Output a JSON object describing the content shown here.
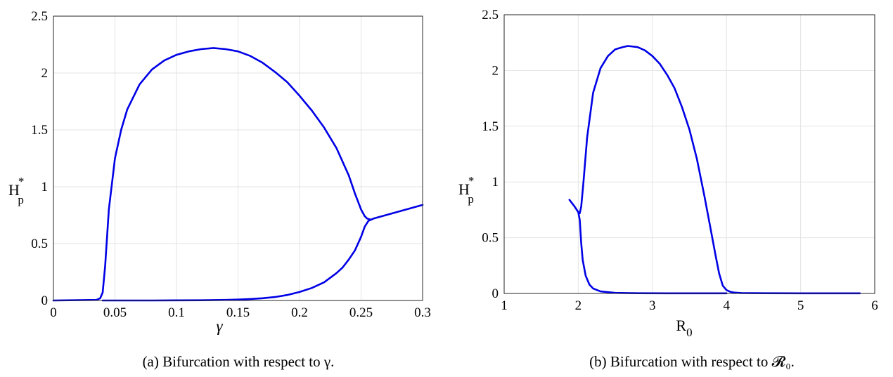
{
  "chart_data": [
    {
      "type": "line",
      "panel": "a",
      "xlabel": "γ",
      "ylabel": {
        "base": "H",
        "sub": "p",
        "sup": "*"
      },
      "xlim": [
        0,
        0.3
      ],
      "ylim": [
        0,
        2.5
      ],
      "x_ticks": [
        0,
        0.05,
        0.1,
        0.15,
        0.2,
        0.25,
        0.3
      ],
      "y_ticks": [
        0,
        0.5,
        1,
        1.5,
        2,
        2.5
      ],
      "x_tick_labels": [
        "0",
        "0.05",
        "0.1",
        "0.15",
        "0.2",
        "0.25",
        "0.3"
      ],
      "y_tick_labels": [
        "0",
        "0.5",
        "1",
        "1.5",
        "2",
        "2.5"
      ],
      "grid": true,
      "series": [
        {
          "x": [
            0,
            0.035,
            0.038,
            0.04,
            0.042,
            0.045,
            0.05,
            0.055,
            0.06,
            0.07,
            0.08,
            0.09,
            0.1,
            0.11,
            0.12,
            0.13,
            0.14,
            0.15,
            0.16,
            0.17,
            0.18,
            0.19,
            0.2,
            0.21,
            0.22,
            0.23,
            0.24,
            0.245,
            0.25,
            0.253,
            0.255,
            0.258
          ],
          "y": [
            0,
            0.005,
            0.02,
            0.07,
            0.3,
            0.8,
            1.25,
            1.5,
            1.68,
            1.9,
            2.03,
            2.11,
            2.16,
            2.19,
            2.21,
            2.22,
            2.21,
            2.19,
            2.15,
            2.09,
            2.01,
            1.92,
            1.8,
            1.67,
            1.52,
            1.34,
            1.1,
            0.94,
            0.8,
            0.74,
            0.72,
            0.71
          ]
        },
        {
          "x": [
            0.04,
            0.06,
            0.08,
            0.1,
            0.12,
            0.14,
            0.15,
            0.16,
            0.17,
            0.18,
            0.19,
            0.2,
            0.21,
            0.22,
            0.23,
            0.235,
            0.24,
            0.245,
            0.25,
            0.253,
            0.256,
            0.26,
            0.27,
            0.28,
            0.29,
            0.3
          ],
          "y": [
            0,
            0,
            0,
            0.001,
            0.002,
            0.005,
            0.008,
            0.013,
            0.02,
            0.03,
            0.048,
            0.075,
            0.11,
            0.16,
            0.24,
            0.29,
            0.36,
            0.44,
            0.56,
            0.65,
            0.7,
            0.72,
            0.75,
            0.78,
            0.81,
            0.84
          ]
        }
      ],
      "caption": "(a)   Bifurcation with respect to γ."
    },
    {
      "type": "line",
      "panel": "b",
      "xlabel": {
        "base": "R",
        "sub": "0"
      },
      "ylabel": {
        "base": "H",
        "sub": "p",
        "sup": "*"
      },
      "xlim": [
        1,
        6
      ],
      "ylim": [
        0,
        2.5
      ],
      "x_ticks": [
        1,
        2,
        3,
        4,
        5,
        6
      ],
      "y_ticks": [
        0,
        0.5,
        1,
        1.5,
        2,
        2.5
      ],
      "x_tick_labels": [
        "1",
        "2",
        "3",
        "4",
        "5",
        "6"
      ],
      "y_tick_labels": [
        "0",
        "0.5",
        "1",
        "1.5",
        "2",
        "2.5"
      ],
      "grid": true,
      "series": [
        {
          "x": [
            1.88,
            1.95,
            2.0,
            2.02,
            2.04,
            2.07,
            2.12,
            2.2,
            2.3,
            2.4,
            2.5,
            2.6,
            2.67,
            2.8,
            2.9,
            3.0,
            3.1,
            3.2,
            3.3,
            3.4,
            3.5,
            3.6,
            3.7,
            3.78,
            3.85,
            3.9,
            3.95,
            4.0,
            4.05,
            4.1,
            4.2,
            4.5,
            5.0,
            5.5,
            5.8
          ],
          "y": [
            0.84,
            0.78,
            0.73,
            0.72,
            0.78,
            1.0,
            1.4,
            1.8,
            2.02,
            2.13,
            2.19,
            2.21,
            2.22,
            2.21,
            2.18,
            2.13,
            2.06,
            1.96,
            1.84,
            1.67,
            1.47,
            1.21,
            0.88,
            0.6,
            0.35,
            0.18,
            0.07,
            0.03,
            0.015,
            0.008,
            0.004,
            0.002,
            0.001,
            0.001,
            0.001
          ]
        },
        {
          "x": [
            2.0,
            2.02,
            2.04,
            2.06,
            2.1,
            2.15,
            2.2,
            2.3,
            2.5,
            2.8,
            3.2,
            3.6,
            3.9,
            4.0
          ],
          "y": [
            0.73,
            0.66,
            0.45,
            0.3,
            0.16,
            0.08,
            0.045,
            0.018,
            0.005,
            0.002,
            0.001,
            0.001,
            0.001,
            0.001
          ]
        }
      ],
      "caption": "(b)   Bifurcation with respect to 𝓡₀."
    }
  ]
}
